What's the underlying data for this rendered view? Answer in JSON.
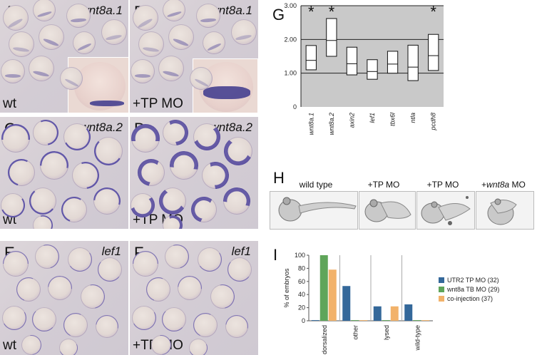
{
  "panels": {
    "A": {
      "letter": "A",
      "gene": "wnt8a.1",
      "condition": "wt"
    },
    "B": {
      "letter": "B",
      "gene": "wnt8a.1",
      "condition": "+TP MO"
    },
    "C": {
      "letter": "C",
      "gene": "wnt8a.2",
      "condition": "wt"
    },
    "D": {
      "letter": "D",
      "gene": "wnt8a.2",
      "condition": "+TP MO"
    },
    "E": {
      "letter": "E",
      "gene": "lef1",
      "condition": "wt"
    },
    "F": {
      "letter": "F",
      "gene": "lef1",
      "condition": "+TP MO"
    }
  },
  "panel_g": {
    "letter": "G"
  },
  "panel_h": {
    "letter": "H",
    "labels": [
      "wild type",
      "+TP MO",
      "+TP MO",
      "+"
    ],
    "wnt8a_label": {
      "prefix": "+",
      "gene": "wnt8a",
      "suffix": " MO"
    }
  },
  "panel_i": {
    "letter": "I"
  },
  "chart_data": [
    {
      "type": "box",
      "panel": "G",
      "categories": [
        "wnt8a.1",
        "wnt8a.2",
        "axin2",
        "lef1",
        "tbx6l",
        "ntla",
        "pcdh8"
      ],
      "boxes": [
        {
          "low": 1.1,
          "median": 1.38,
          "high": 1.82,
          "significant": true
        },
        {
          "low": 1.5,
          "median": 1.97,
          "high": 2.62,
          "significant": true
        },
        {
          "low": 0.95,
          "median": 1.28,
          "high": 1.77,
          "significant": false
        },
        {
          "low": 0.82,
          "median": 1.05,
          "high": 1.4,
          "significant": false
        },
        {
          "low": 1.0,
          "median": 1.27,
          "high": 1.65,
          "significant": false
        },
        {
          "low": 0.78,
          "median": 1.18,
          "high": 1.83,
          "significant": false
        },
        {
          "low": 1.08,
          "median": 1.52,
          "high": 2.15,
          "significant": true
        }
      ],
      "ylim": [
        0,
        3
      ],
      "yticks": [
        "0",
        "1.00",
        "2.00",
        "3.00"
      ],
      "significance_marker": "*",
      "grid": true
    },
    {
      "type": "bar",
      "panel": "I",
      "categories": [
        "dorsalized",
        "other",
        "lysed",
        "wild-type"
      ],
      "series": [
        {
          "name": "UTR2 TP MO (32)",
          "color": "#34689a",
          "values": [
            1,
            53,
            22,
            25
          ]
        },
        {
          "name": "wnt8a TB MO (29)",
          "color": "#5fa55a",
          "values": [
            100,
            1,
            1,
            1
          ]
        },
        {
          "name": "co-injection (37)",
          "color": "#f2b26a",
          "values": [
            78,
            1,
            22,
            1
          ]
        }
      ],
      "ylabel": "% of embryos",
      "ylim": [
        0,
        100
      ],
      "yticks": [
        "0",
        "20",
        "40",
        "60",
        "80",
        "100"
      ],
      "legend": "right"
    }
  ]
}
